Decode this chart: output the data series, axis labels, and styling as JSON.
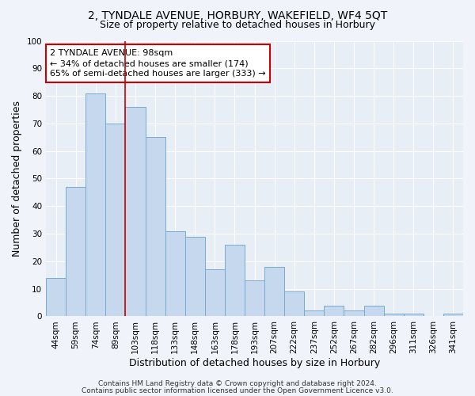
{
  "title": "2, TYNDALE AVENUE, HORBURY, WAKEFIELD, WF4 5QT",
  "subtitle": "Size of property relative to detached houses in Horbury",
  "xlabel": "Distribution of detached houses by size in Horbury",
  "ylabel": "Number of detached properties",
  "categories": [
    "44sqm",
    "59sqm",
    "74sqm",
    "89sqm",
    "103sqm",
    "118sqm",
    "133sqm",
    "148sqm",
    "163sqm",
    "178sqm",
    "193sqm",
    "207sqm",
    "222sqm",
    "237sqm",
    "252sqm",
    "267sqm",
    "282sqm",
    "296sqm",
    "311sqm",
    "326sqm",
    "341sqm"
  ],
  "values": [
    14,
    47,
    81,
    70,
    76,
    65,
    31,
    29,
    17,
    26,
    13,
    18,
    9,
    2,
    4,
    2,
    4,
    1,
    1,
    0,
    1
  ],
  "bar_color": "#c5d8ee",
  "bar_edge_color": "#7aaacf",
  "vline_color": "#cc0000",
  "vline_index": 3.5,
  "annotation_text_line1": "2 TYNDALE AVENUE: 98sqm",
  "annotation_text_line2": "← 34% of detached houses are smaller (174)",
  "annotation_text_line3": "65% of semi-detached houses are larger (333) →",
  "box_edge_color": "#cc0000",
  "ylim": [
    0,
    100
  ],
  "yticks": [
    0,
    10,
    20,
    30,
    40,
    50,
    60,
    70,
    80,
    90,
    100
  ],
  "footer_line1": "Contains HM Land Registry data © Crown copyright and database right 2024.",
  "footer_line2": "Contains public sector information licensed under the Open Government Licence v3.0.",
  "bg_color": "#f0f4fa",
  "plot_bg_color": "#e8eef6",
  "title_fontsize": 10,
  "subtitle_fontsize": 9,
  "axis_label_fontsize": 9,
  "tick_fontsize": 7.5,
  "annotation_fontsize": 8,
  "footer_fontsize": 6.5
}
